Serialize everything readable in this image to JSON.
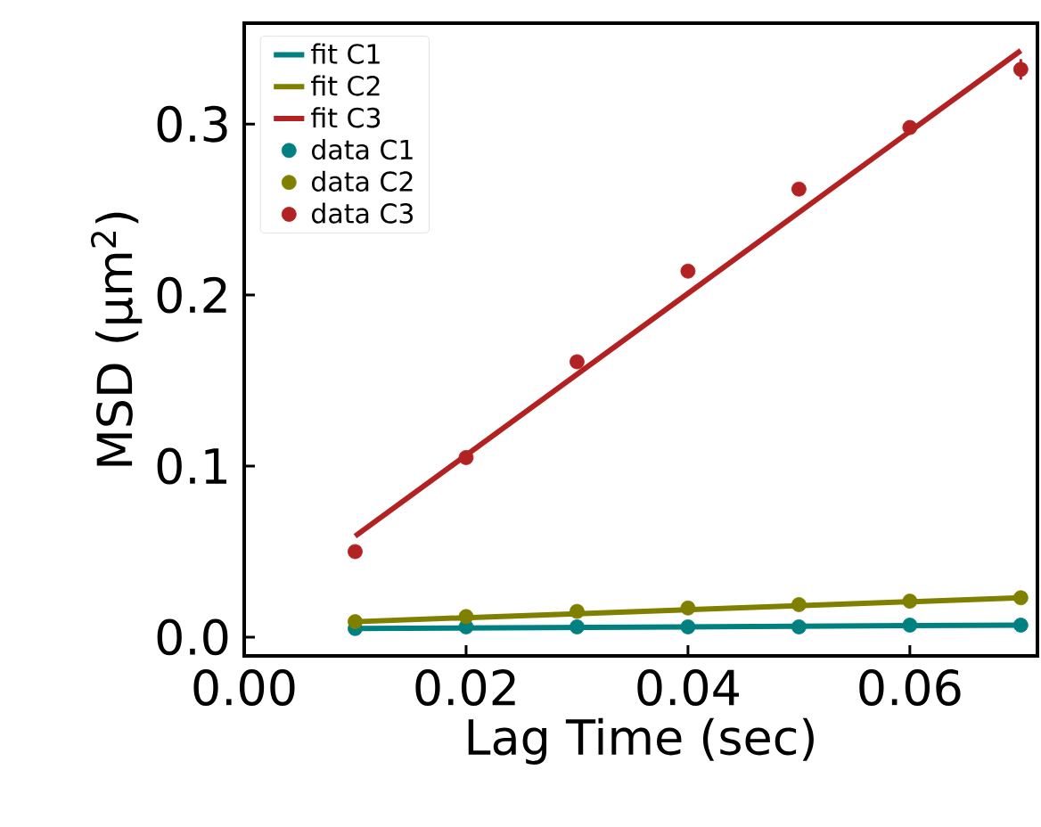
{
  "chart_data": {
    "type": "line",
    "xlabel": "Lag Time (sec)",
    "ylabel": "MSD (μm$^{2}$)",
    "xlim": [
      0,
      0.0715
    ],
    "ylim": [
      -0.011,
      0.359
    ],
    "xticks": [
      {
        "value": 0,
        "label": "0.00"
      },
      {
        "value": 0.02,
        "label": "0.02"
      },
      {
        "value": 0.04,
        "label": "0.04"
      },
      {
        "value": 0.06,
        "label": "0.06"
      }
    ],
    "yticks": [
      {
        "value": 0,
        "label": "0.0"
      },
      {
        "value": 0.1,
        "label": "0.1"
      },
      {
        "value": 0.2,
        "label": "0.2"
      },
      {
        "value": 0.3,
        "label": "0.3"
      }
    ],
    "legend": "top left",
    "series": [
      {
        "name": "fit C1",
        "type": "line",
        "marker": "none",
        "color": "#008080",
        "x": [
          0.01,
          0.07
        ],
        "values": [
          0.005,
          0.007
        ]
      },
      {
        "name": "fit C2",
        "type": "line",
        "marker": "none",
        "color": "#808000",
        "x": [
          0.01,
          0.07
        ],
        "values": [
          0.009,
          0.023
        ]
      },
      {
        "name": "fit C3",
        "type": "line",
        "marker": "none",
        "color": "#b22222",
        "x": [
          0.01,
          0.07
        ],
        "values": [
          0.059,
          0.343
        ]
      },
      {
        "name": "data C1",
        "type": "scatter",
        "marker": "circle",
        "color": "#008080",
        "x": [
          0.01,
          0.02,
          0.03,
          0.04,
          0.05,
          0.06,
          0.07
        ],
        "values": [
          0.005,
          0.006,
          0.006,
          0.006,
          0.006,
          0.007,
          0.007
        ]
      },
      {
        "name": "data C2",
        "type": "scatter",
        "marker": "circle",
        "color": "#808000",
        "x": [
          0.01,
          0.02,
          0.03,
          0.04,
          0.05,
          0.06,
          0.07
        ],
        "values": [
          0.009,
          0.012,
          0.015,
          0.017,
          0.019,
          0.021,
          0.023
        ]
      },
      {
        "name": "data C3",
        "type": "scatter",
        "marker": "circle",
        "color": "#b22222",
        "x": [
          0.01,
          0.02,
          0.03,
          0.04,
          0.05,
          0.06,
          0.07
        ],
        "values": [
          0.05,
          0.105,
          0.161,
          0.214,
          0.262,
          0.298,
          0.332
        ],
        "errors": [
          null,
          null,
          null,
          null,
          null,
          0.004,
          0.006
        ]
      }
    ]
  }
}
